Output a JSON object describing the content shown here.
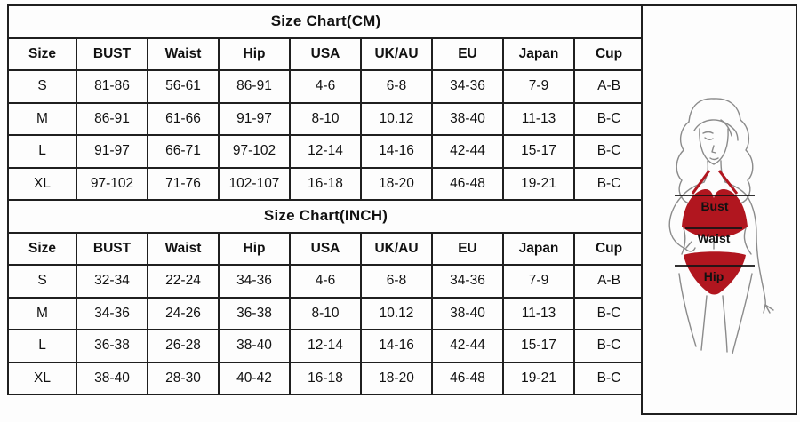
{
  "tables": [
    {
      "title": "Size Chart(CM)",
      "columns": [
        "Size",
        "BUST",
        "Waist",
        "Hip",
        "USA",
        "UK/AU",
        "EU",
        "Japan",
        "Cup"
      ],
      "rows": [
        [
          "S",
          "81-86",
          "56-61",
          "86-91",
          "4-6",
          "6-8",
          "34-36",
          "7-9",
          "A-B"
        ],
        [
          "M",
          "86-91",
          "61-66",
          "91-97",
          "8-10",
          "10.12",
          "38-40",
          "11-13",
          "B-C"
        ],
        [
          "L",
          "91-97",
          "66-71",
          "97-102",
          "12-14",
          "14-16",
          "42-44",
          "15-17",
          "B-C"
        ],
        [
          "XL",
          "97-102",
          "71-76",
          "102-107",
          "16-18",
          "18-20",
          "46-48",
          "19-21",
          "B-C"
        ]
      ]
    },
    {
      "title": "Size Chart(INCH)",
      "columns": [
        "Size",
        "BUST",
        "Waist",
        "Hip",
        "USA",
        "UK/AU",
        "EU",
        "Japan",
        "Cup"
      ],
      "rows": [
        [
          "S",
          "32-34",
          "22-24",
          "34-36",
          "4-6",
          "6-8",
          "34-36",
          "7-9",
          "A-B"
        ],
        [
          "M",
          "34-36",
          "24-26",
          "36-38",
          "8-10",
          "10.12",
          "38-40",
          "11-13",
          "B-C"
        ],
        [
          "L",
          "36-38",
          "26-28",
          "38-40",
          "12-14",
          "14-16",
          "42-44",
          "15-17",
          "B-C"
        ],
        [
          "XL",
          "38-40",
          "28-30",
          "40-42",
          "16-18",
          "18-20",
          "46-48",
          "19-21",
          "B-C"
        ]
      ]
    }
  ],
  "figure": {
    "labels": {
      "bust": "Bust",
      "waist": "Waist",
      "hip": "Hip"
    },
    "colors": {
      "bikini": "#b1161f",
      "outline": "#8b8b8b",
      "measure_line": "#151515",
      "label_text": "#111111"
    }
  }
}
